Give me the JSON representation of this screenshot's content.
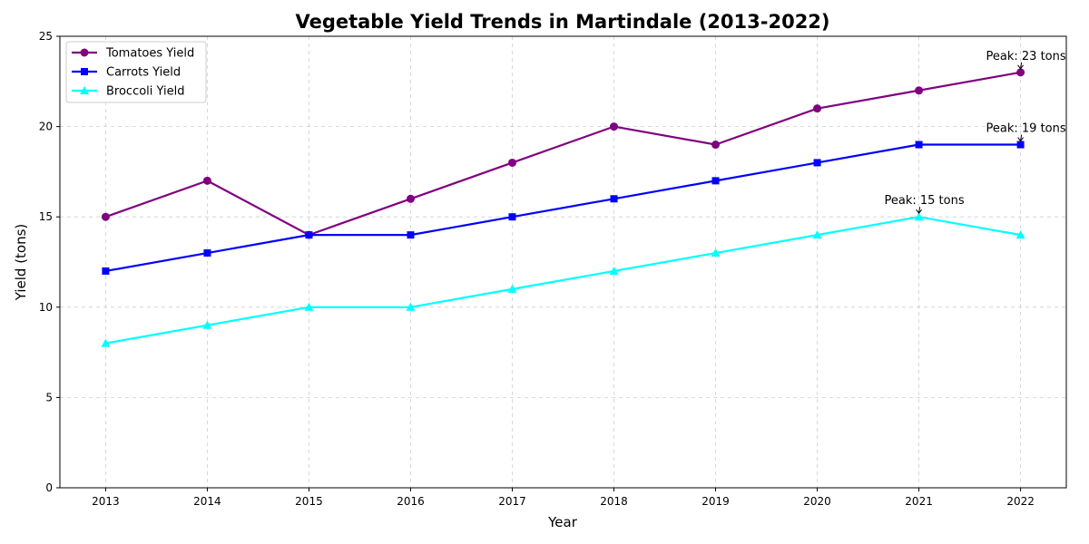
{
  "chart_data": {
    "type": "line",
    "title": "Vegetable Yield Trends in Martindale (2013-2022)",
    "xlabel": "Year",
    "ylabel": "Yield (tons)",
    "x": [
      2013,
      2014,
      2015,
      2016,
      2017,
      2018,
      2019,
      2020,
      2021,
      2022
    ],
    "ylim": [
      0,
      25
    ],
    "yticks": [
      0,
      5,
      10,
      15,
      20,
      25
    ],
    "grid": true,
    "legend_position": "top-left",
    "series": [
      {
        "name": "Tomatoes Yield",
        "values": [
          15,
          17,
          14,
          16,
          18,
          20,
          19,
          21,
          22,
          23
        ],
        "color": "#800080",
        "marker": "circle"
      },
      {
        "name": "Carrots Yield",
        "values": [
          12,
          13,
          14,
          14,
          15,
          16,
          17,
          18,
          19,
          19
        ],
        "color": "#0000ff",
        "marker": "square"
      },
      {
        "name": "Broccoli Yield",
        "values": [
          8,
          9,
          10,
          10,
          11,
          12,
          13,
          14,
          15,
          14
        ],
        "color": "#00ffff",
        "marker": "triangle"
      }
    ],
    "annotations": [
      {
        "text": "Peak: 23 tons",
        "x": 2022,
        "y": 23
      },
      {
        "text": "Peak: 19 tons",
        "x": 2022,
        "y": 19
      },
      {
        "text": "Peak: 15 tons",
        "x": 2021,
        "y": 15
      }
    ]
  }
}
